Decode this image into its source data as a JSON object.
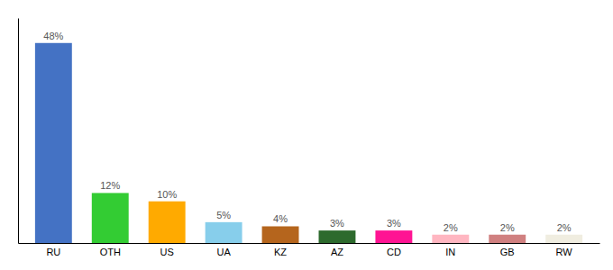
{
  "chart_data": {
    "type": "bar",
    "categories": [
      "RU",
      "OTH",
      "US",
      "UA",
      "KZ",
      "AZ",
      "CD",
      "IN",
      "GB",
      "RW"
    ],
    "values": [
      48,
      12,
      10,
      5,
      4,
      3,
      3,
      2,
      2,
      2
    ],
    "value_labels": [
      "48%",
      "12%",
      "10%",
      "5%",
      "4%",
      "3%",
      "3%",
      "2%",
      "2%",
      "2%"
    ],
    "colors": [
      "#4472c4",
      "#33cc33",
      "#ffaa00",
      "#87ceeb",
      "#b5651d",
      "#2d6a2d",
      "#ff1493",
      "#ffb6c1",
      "#d08080",
      "#f0ede0"
    ],
    "ylim": [
      0,
      54
    ],
    "data_labels": true,
    "tick_labels": "x",
    "grid": false
  }
}
